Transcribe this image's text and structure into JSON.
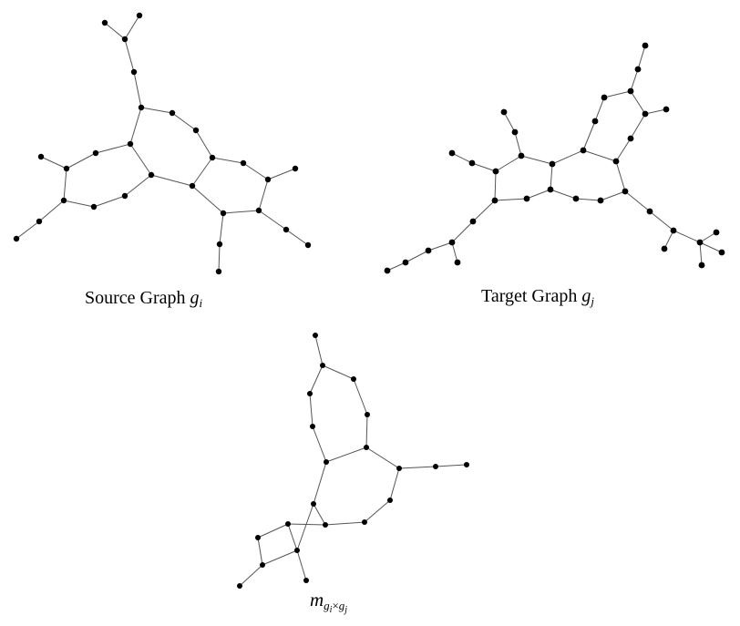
{
  "captions": {
    "source": {
      "text": "Source Graph ",
      "math": "g",
      "sub": "i"
    },
    "target": {
      "text": "Target Graph ",
      "math": "g",
      "sub": "j"
    },
    "product": {
      "math": "m",
      "sub_a": "g",
      "sub_a_i": "i",
      "times": "×",
      "sub_b": "g",
      "sub_b_j": "j"
    }
  },
  "graphs": [
    {
      "name": "source-graph",
      "node_count": 35
    },
    {
      "name": "target-graph",
      "node_count": 37
    },
    {
      "name": "product-graph",
      "node_count": 29
    }
  ]
}
